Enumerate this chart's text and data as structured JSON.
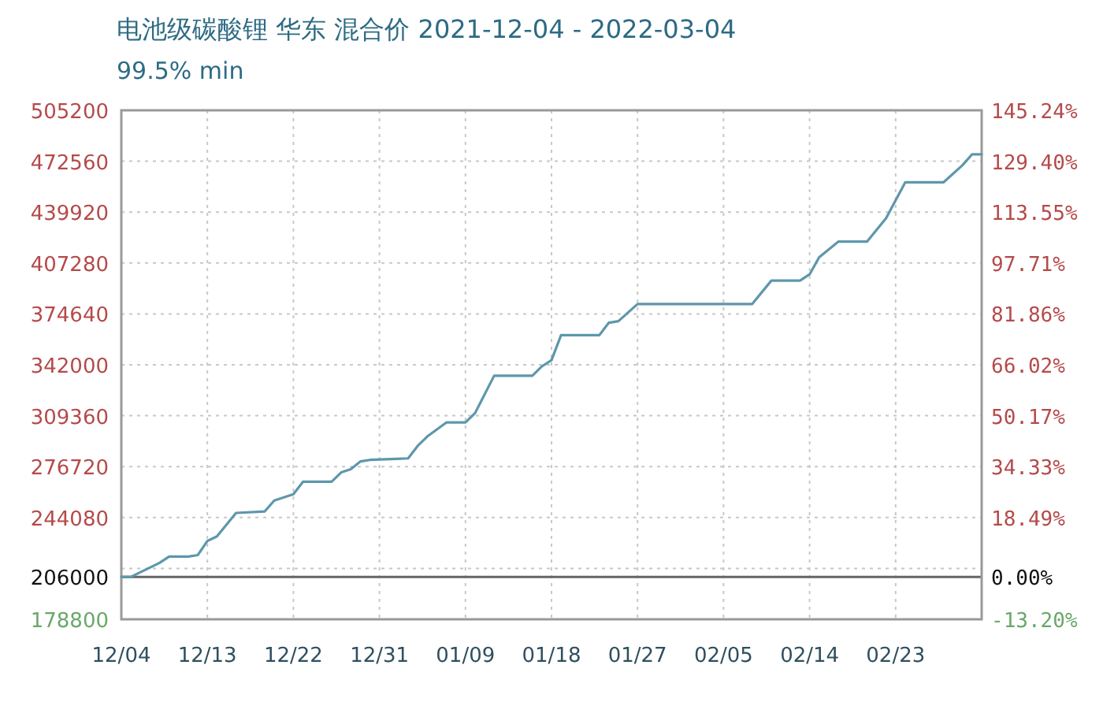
{
  "chart_data": {
    "type": "line",
    "title": "电池级碳酸锂 华东 混合价 2021-12-04 - 2022-03-04",
    "subtitle": "99.5% min",
    "x": [
      "2021-12-04",
      "2021-12-05",
      "2021-12-08",
      "2021-12-09",
      "2021-12-11",
      "2021-12-12",
      "2021-12-13",
      "2021-12-14",
      "2021-12-16",
      "2021-12-19",
      "2021-12-20",
      "2021-12-22",
      "2021-12-23",
      "2021-12-26",
      "2021-12-27",
      "2021-12-28",
      "2021-12-29",
      "2021-12-30",
      "2022-01-03",
      "2022-01-04",
      "2022-01-05",
      "2022-01-07",
      "2022-01-09",
      "2022-01-10",
      "2022-01-12",
      "2022-01-16",
      "2022-01-17",
      "2022-01-18",
      "2022-01-19",
      "2022-01-23",
      "2022-01-24",
      "2022-01-25",
      "2022-01-27",
      "2022-02-08",
      "2022-02-10",
      "2022-02-13",
      "2022-02-14",
      "2022-02-15",
      "2022-02-17",
      "2022-02-20",
      "2022-02-22",
      "2022-02-24",
      "2022-02-28",
      "2022-03-02",
      "2022-03-03",
      "2022-03-04"
    ],
    "series": [
      {
        "color": "#5e97ab",
        "values": [
          206000,
          206000,
          215000,
          219000,
          219000,
          220000,
          229000,
          232000,
          247000,
          248000,
          255000,
          259000,
          267000,
          267000,
          273000,
          275000,
          280000,
          281000,
          282000,
          290000,
          296000,
          305000,
          305000,
          311000,
          335000,
          335000,
          341000,
          345000,
          361000,
          361000,
          369000,
          370000,
          381000,
          381000,
          396000,
          396000,
          400000,
          411000,
          421000,
          421000,
          436000,
          459000,
          459000,
          470000,
          477000,
          477000
        ]
      }
    ],
    "xlim": [
      "2021-12-04",
      "2022-03-04"
    ],
    "xticks": [
      {
        "value": "2021-12-04",
        "label": "12/04"
      },
      {
        "value": "2021-12-13",
        "label": "12/13"
      },
      {
        "value": "2021-12-22",
        "label": "12/22"
      },
      {
        "value": "2021-12-31",
        "label": "12/31"
      },
      {
        "value": "2022-01-09",
        "label": "01/09"
      },
      {
        "value": "2022-01-18",
        "label": "01/18"
      },
      {
        "value": "2022-01-27",
        "label": "01/27"
      },
      {
        "value": "2022-02-05",
        "label": "02/05"
      },
      {
        "value": "2022-02-14",
        "label": "02/14"
      },
      {
        "value": "2022-02-23",
        "label": "02/23"
      }
    ],
    "ylim": [
      178800,
      505200
    ],
    "yticks": [
      178800,
      {
        "value": 211440,
        "label": null
      },
      244080,
      276720,
      309360,
      342000,
      374640,
      407280,
      439920,
      472560,
      505200
    ],
    "y2lim": [
      -13.2,
      145.24
    ],
    "y2ticks": [
      {
        "value": -13.2,
        "label": "-13.20%"
      },
      {
        "value": 0,
        "label": "0.00%"
      },
      {
        "value": 18.49,
        "label": "18.49%"
      },
      {
        "value": 34.33,
        "label": "34.33%"
      },
      {
        "value": 50.17,
        "label": "50.17%"
      },
      {
        "value": 66.02,
        "label": "66.02%"
      },
      {
        "value": 81.86,
        "label": "81.86%"
      },
      {
        "value": 97.71,
        "label": "97.71%"
      },
      {
        "value": 113.55,
        "label": "113.55%"
      },
      {
        "value": 129.4,
        "label": "129.40%"
      },
      {
        "value": 145.24,
        "label": "145.24%"
      }
    ],
    "ref_lines": [
      {
        "axis": "y",
        "value": 206000,
        "label": "206000",
        "color": "#666666"
      }
    ],
    "grid": true
  }
}
